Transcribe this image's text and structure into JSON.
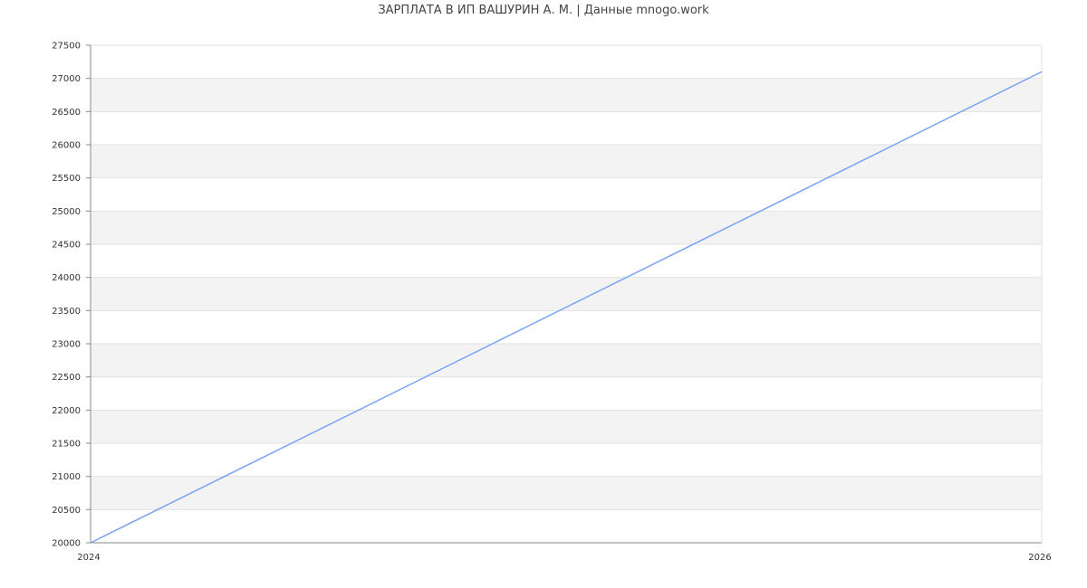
{
  "chart_data": {
    "type": "line",
    "title": "ЗАРПЛАТА В ИП ВАШУРИН А. М. | Данные mnogo.work",
    "xlabel": "",
    "ylabel": "",
    "x": [
      2024,
      2026
    ],
    "series": [
      {
        "values": [
          20000,
          27100
        ],
        "color": "#7aa3f5"
      }
    ],
    "xlim": [
      2024,
      2026
    ],
    "ylim": [
      20000,
      27500
    ],
    "xticks": [
      "2024",
      "2026"
    ],
    "yticks": [
      20000,
      20500,
      21000,
      21500,
      22000,
      22500,
      23000,
      23500,
      24000,
      24500,
      25000,
      25500,
      26000,
      26500,
      27000,
      27500
    ],
    "grid": true,
    "band_color": "#f3f3f3"
  }
}
